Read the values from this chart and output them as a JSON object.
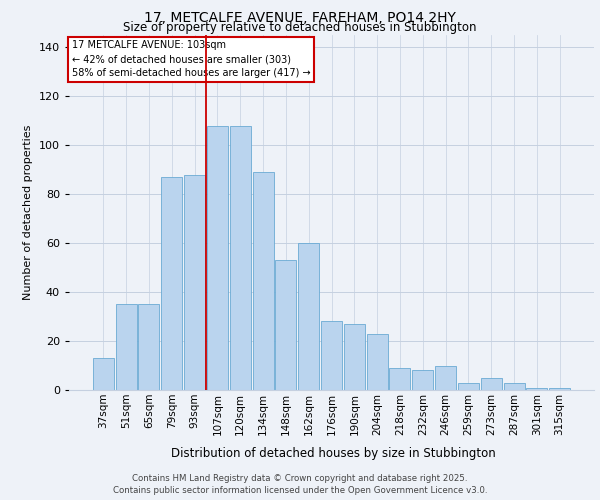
{
  "title1": "17, METCALFE AVENUE, FAREHAM, PO14 2HY",
  "title2": "Size of property relative to detached houses in Stubbington",
  "xlabel": "Distribution of detached houses by size in Stubbington",
  "ylabel": "Number of detached properties",
  "categories": [
    "37sqm",
    "51sqm",
    "65sqm",
    "79sqm",
    "93sqm",
    "107sqm",
    "120sqm",
    "134sqm",
    "148sqm",
    "162sqm",
    "176sqm",
    "190sqm",
    "204sqm",
    "218sqm",
    "232sqm",
    "246sqm",
    "259sqm",
    "273sqm",
    "287sqm",
    "301sqm",
    "315sqm"
  ],
  "values": [
    13,
    35,
    35,
    87,
    88,
    108,
    108,
    89,
    53,
    60,
    28,
    27,
    23,
    9,
    8,
    10,
    3,
    5,
    3,
    1,
    1
  ],
  "bar_color": "#bad4ee",
  "bar_edge_color": "#6aaad4",
  "property_label": "17 METCALFE AVENUE: 103sqm",
  "annotation_line1": "← 42% of detached houses are smaller (303)",
  "annotation_line2": "58% of semi-detached houses are larger (417) →",
  "vline_color": "#cc0000",
  "vline_bin_index": 5,
  "annotation_box_color": "#cc0000",
  "ylim": [
    0,
    145
  ],
  "yticks": [
    0,
    20,
    40,
    60,
    80,
    100,
    120,
    140
  ],
  "footer1": "Contains HM Land Registry data © Crown copyright and database right 2025.",
  "footer2": "Contains public sector information licensed under the Open Government Licence v3.0.",
  "background_color": "#eef2f8",
  "grid_color": "#c5d0e0"
}
